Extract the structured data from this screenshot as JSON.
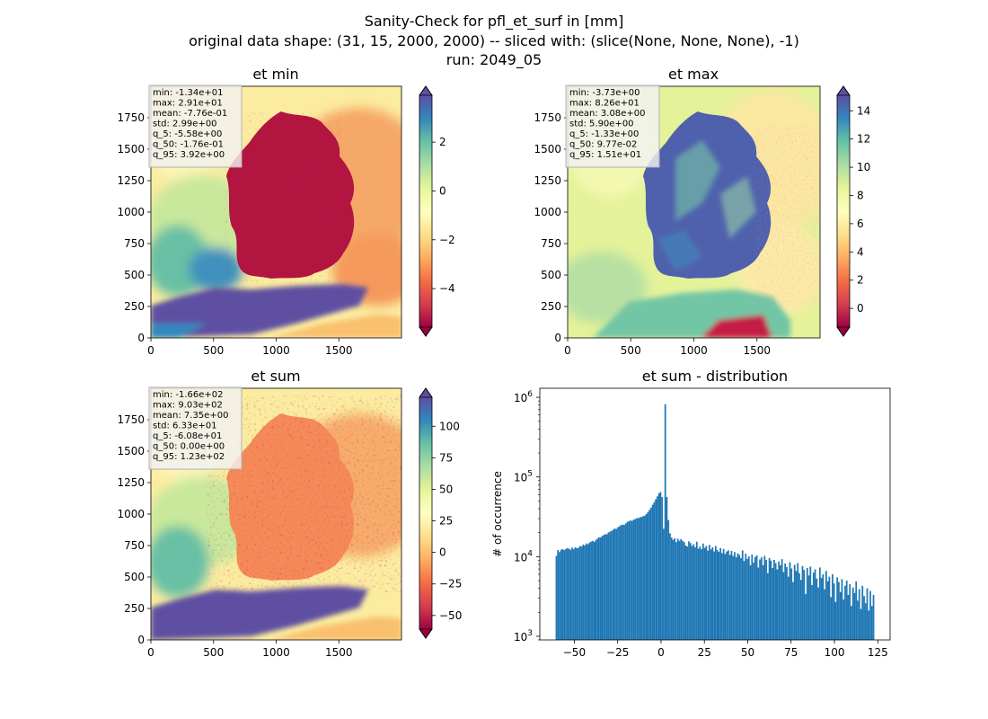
{
  "suptitle": [
    "Sanity-Check for pfl_et_surf in [mm]",
    "original data shape: (31, 15, 2000, 2000) -- sliced with: (slice(None, None, None), -1)",
    "run: 2049_05"
  ],
  "colors": {
    "spectral": [
      "#9e0142",
      "#d53e4f",
      "#f46d43",
      "#fdae61",
      "#fee08b",
      "#ffffbf",
      "#e6f598",
      "#abdda4",
      "#66c2a5",
      "#3288bd",
      "#5e4fa2"
    ],
    "hist_bar": "#1f77b4"
  },
  "chart_data": [
    {
      "type": "heatmap",
      "title": "et min",
      "xlim": [
        0,
        2000
      ],
      "ylim": [
        0,
        2000
      ],
      "xticks": [
        0,
        500,
        1000,
        1500
      ],
      "yticks": [
        0,
        250,
        500,
        750,
        1000,
        1250,
        1500,
        1750
      ],
      "colorbar": {
        "range": [
          -5.58,
          3.92
        ],
        "ticks": [
          "−4",
          "−2",
          "0",
          "2"
        ],
        "tick_values": [
          -4,
          -2,
          0,
          2
        ],
        "extend": "both"
      },
      "stats": [
        "min: -1.34e+01",
        "max: 2.91e+01",
        "mean: -7.76e-01",
        "std: 2.99e+00",
        "q_5: -5.58e+00",
        "q_50: -1.76e-01",
        "q_95: 3.92e+00"
      ]
    },
    {
      "type": "heatmap",
      "title": "et max",
      "xlim": [
        0,
        2000
      ],
      "ylim": [
        0,
        2000
      ],
      "xticks": [
        0,
        500,
        1000,
        1500
      ],
      "yticks": [
        0,
        250,
        500,
        750,
        1000,
        1250,
        1500,
        1750
      ],
      "colorbar": {
        "range": [
          -1.33,
          15.1
        ],
        "ticks": [
          "0",
          "2",
          "4",
          "6",
          "8",
          "10",
          "12",
          "14"
        ],
        "tick_values": [
          0,
          2,
          4,
          6,
          8,
          10,
          12,
          14
        ],
        "extend": "both"
      },
      "stats": [
        "min: -3.73e+00",
        "max: 8.26e+01",
        "mean: 3.08e+00",
        "std: 5.90e+00",
        "q_5: -1.33e+00",
        "q_50: 9.77e-02",
        "q_95: 1.51e+01"
      ]
    },
    {
      "type": "heatmap",
      "title": "et sum",
      "xlim": [
        0,
        2000
      ],
      "ylim": [
        0,
        2000
      ],
      "xticks": [
        0,
        500,
        1000,
        1500
      ],
      "yticks": [
        0,
        250,
        500,
        750,
        1000,
        1250,
        1500,
        1750
      ],
      "colorbar": {
        "range": [
          -60.8,
          123
        ],
        "ticks": [
          "−50",
          "−25",
          "0",
          "25",
          "50",
          "75",
          "100"
        ],
        "tick_values": [
          -50,
          -25,
          0,
          25,
          50,
          75,
          100
        ],
        "extend": "both"
      },
      "stats": [
        "min: -1.66e+02",
        "max: 9.03e+02",
        "mean: 7.35e+00",
        "std: 6.33e+01",
        "q_5: -6.08e+01",
        "q_50: 0.00e+00",
        "q_95: 1.23e+02"
      ]
    },
    {
      "type": "bar",
      "title": "et sum - distribution",
      "ylabel": "# of occurrence",
      "xlabel": "",
      "yscale": "log",
      "xlim": [
        -69.9,
        132.1
      ],
      "ylim": [
        900,
        1300000
      ],
      "xticks": [
        -50,
        -25,
        0,
        25,
        50,
        75,
        100,
        125
      ],
      "xtick_labels": [
        "−50",
        "−25",
        "0",
        "25",
        "50",
        "75",
        "100",
        "125"
      ],
      "yticks": [
        1000,
        10000,
        100000,
        1000000
      ],
      "ytick_labels": [
        [
          "10",
          "3"
        ],
        [
          "10",
          "4"
        ],
        [
          "10",
          "5"
        ],
        [
          "10",
          "6"
        ]
      ],
      "bin_range": [
        -60.8,
        123
      ],
      "bin_count": 200,
      "counts": [
        10200,
        12100,
        11400,
        12200,
        12400,
        12100,
        12500,
        12800,
        12600,
        12200,
        13000,
        12400,
        13100,
        12800,
        12900,
        13600,
        13400,
        14200,
        13800,
        14600,
        14300,
        15000,
        15400,
        15800,
        15300,
        16200,
        16800,
        17500,
        17400,
        18200,
        18600,
        19200,
        19000,
        20100,
        20600,
        21000,
        21800,
        22500,
        22300,
        23400,
        24100,
        24800,
        25200,
        25000,
        26100,
        27200,
        27800,
        28400,
        28100,
        29200,
        29600,
        30500,
        30400,
        31200,
        31500,
        32200,
        32600,
        34200,
        36200,
        38600,
        41200,
        44800,
        48300,
        52600,
        57000,
        62400,
        64800,
        56000,
        22400,
        820000,
        56000,
        28800,
        19600,
        17400,
        16200,
        17000,
        15200,
        16800,
        15800,
        16600,
        15800,
        15200,
        13800,
        13400,
        15600,
        14800,
        13600,
        14300,
        13100,
        15400,
        12600,
        13400,
        12400,
        14600,
        12900,
        13600,
        11900,
        14000,
        12300,
        13100,
        11600,
        13600,
        12100,
        11500,
        12800,
        11100,
        12500,
        10800,
        11600,
        12000,
        10500,
        11800,
        10200,
        11400,
        9800,
        11000,
        10500,
        9600,
        12000,
        8800,
        10900,
        9400,
        10100,
        7800,
        10600,
        8400,
        9900,
        10400,
        7300,
        9200,
        9800,
        7800,
        10200,
        9100,
        6200,
        9600,
        8900,
        7200,
        9100,
        8300,
        6900,
        8700,
        7800,
        9300,
        6400,
        8200,
        7400,
        5600,
        8500,
        7100,
        4800,
        7900,
        6600,
        8300,
        6200,
        5100,
        7600,
        6800,
        3400,
        7200,
        5800,
        7500,
        4400,
        6300,
        6900,
        5300,
        4100,
        7300,
        5400,
        6000,
        3900,
        6600,
        4900,
        5600,
        3100,
        6000,
        4600,
        2700,
        5500,
        4800,
        3600,
        5200,
        2900,
        4300,
        5000,
        3300,
        4500,
        2400,
        4100,
        3500,
        4900,
        2800,
        3900,
        2200,
        4300,
        3200,
        2600,
        4000,
        2100,
        3700,
        2400,
        3300
      ]
    }
  ]
}
